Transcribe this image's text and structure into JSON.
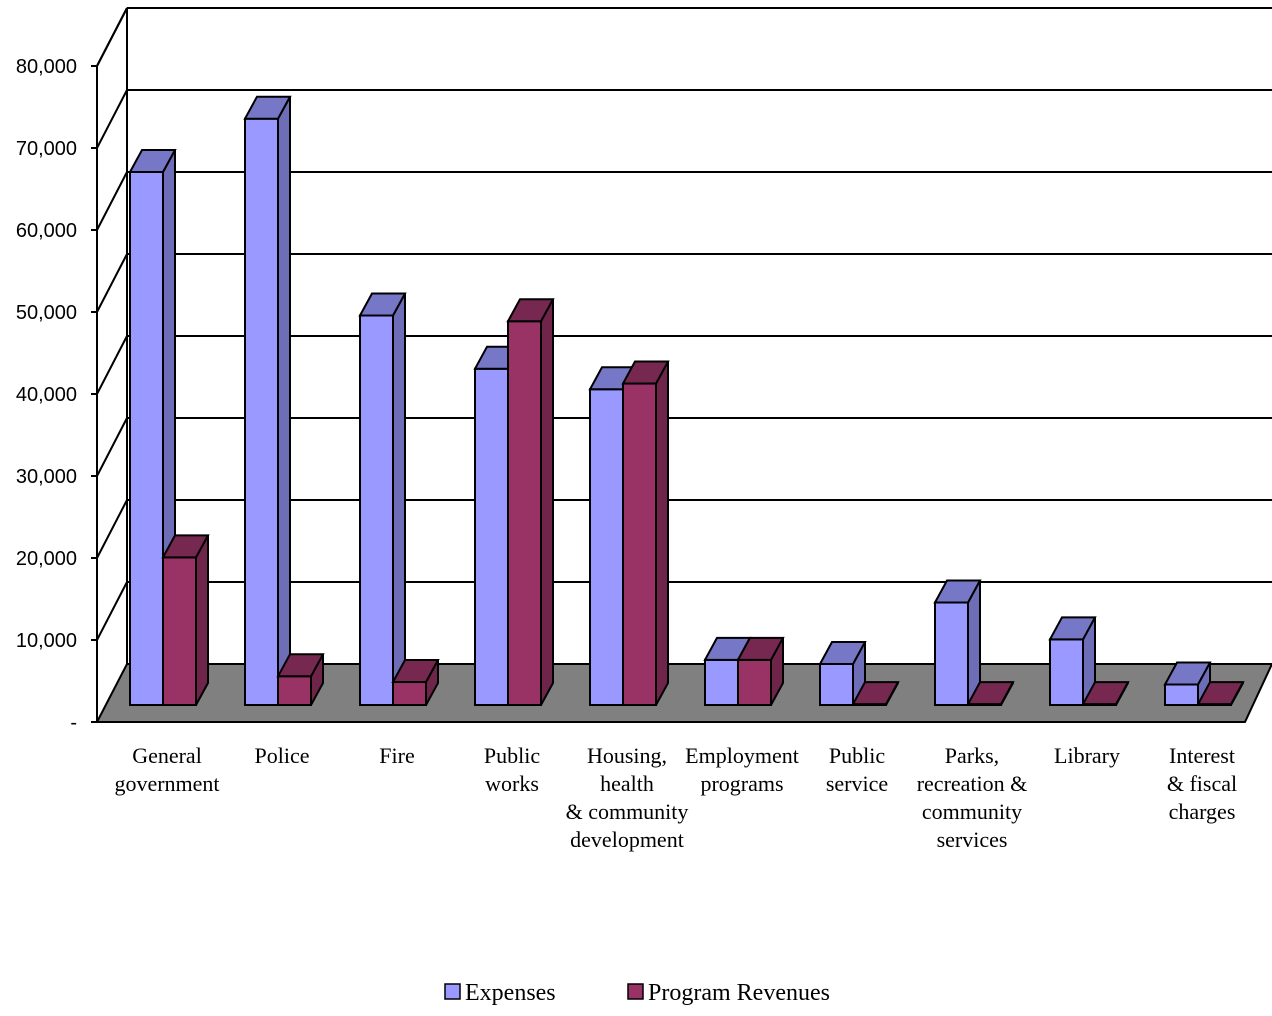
{
  "chart_data": {
    "type": "bar",
    "style": "3d-clustered-column",
    "categories": [
      [
        "General",
        "government"
      ],
      [
        "Police"
      ],
      [
        "Fire"
      ],
      [
        "Public",
        "works"
      ],
      [
        "Housing,",
        "health",
        "& community",
        "development"
      ],
      [
        "Employment",
        "programs"
      ],
      [
        "Public",
        "service"
      ],
      [
        "Parks,",
        "recreation &",
        "community",
        "services"
      ],
      [
        "Library"
      ],
      [
        "Interest",
        "& fiscal",
        "charges"
      ]
    ],
    "series": [
      {
        "name": "Expenses",
        "color": "#9999FF",
        "values": [
          65000,
          71500,
          47500,
          41000,
          38500,
          5500,
          5000,
          12500,
          8000,
          2500
        ]
      },
      {
        "name": "Program Revenues",
        "color": "#993366",
        "values": [
          18000,
          3500,
          2800,
          46800,
          39200,
          5500,
          100,
          100,
          100,
          100
        ]
      }
    ],
    "y_ticks": [
      "-",
      "10,000",
      "20,000",
      "30,000",
      "40,000",
      "50,000",
      "60,000",
      "70,000",
      "80,000"
    ],
    "ylim": [
      0,
      80000
    ],
    "grid": true,
    "legend_position": "bottom",
    "floor_color": "#808080",
    "title": "",
    "xlabel": "",
    "ylabel": ""
  }
}
